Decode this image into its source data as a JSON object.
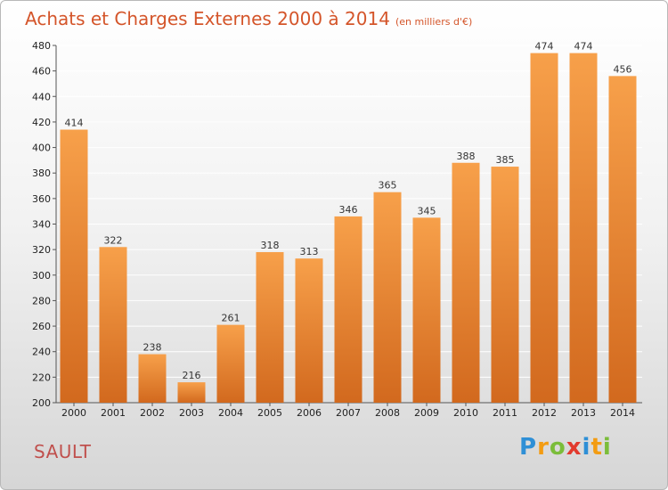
{
  "title": "Achats et Charges Externes 2000 à 2014",
  "subtitle": "(en milliers d'€)",
  "place": "SAULT",
  "logo": {
    "letters": [
      {
        "ch": "P",
        "color": "#2e8fd6"
      },
      {
        "ch": "r",
        "color": "#f39c12"
      },
      {
        "ch": "o",
        "color": "#7bbd3a"
      },
      {
        "ch": "x",
        "color": "#e23a2e"
      },
      {
        "ch": "i",
        "color": "#2e8fd6"
      },
      {
        "ch": "t",
        "color": "#f39c12"
      },
      {
        "ch": "i",
        "color": "#7bbd3a"
      }
    ]
  },
  "colors": {
    "bar_top": "#f7a04a",
    "bar_bottom": "#d2691e",
    "title": "#d4552a",
    "grid": "#ffffff"
  },
  "chart_data": {
    "type": "bar",
    "categories": [
      "2000",
      "2001",
      "2002",
      "2003",
      "2004",
      "2005",
      "2006",
      "2007",
      "2008",
      "2009",
      "2010",
      "2011",
      "2012",
      "2013",
      "2014"
    ],
    "values": [
      414,
      322,
      238,
      216,
      261,
      318,
      313,
      346,
      365,
      345,
      388,
      385,
      474,
      474,
      456
    ],
    "ylim": [
      200,
      480
    ],
    "yticks": [
      200,
      220,
      240,
      260,
      280,
      300,
      320,
      340,
      360,
      380,
      400,
      420,
      440,
      460,
      480
    ],
    "grid": true,
    "data_labels": true
  }
}
